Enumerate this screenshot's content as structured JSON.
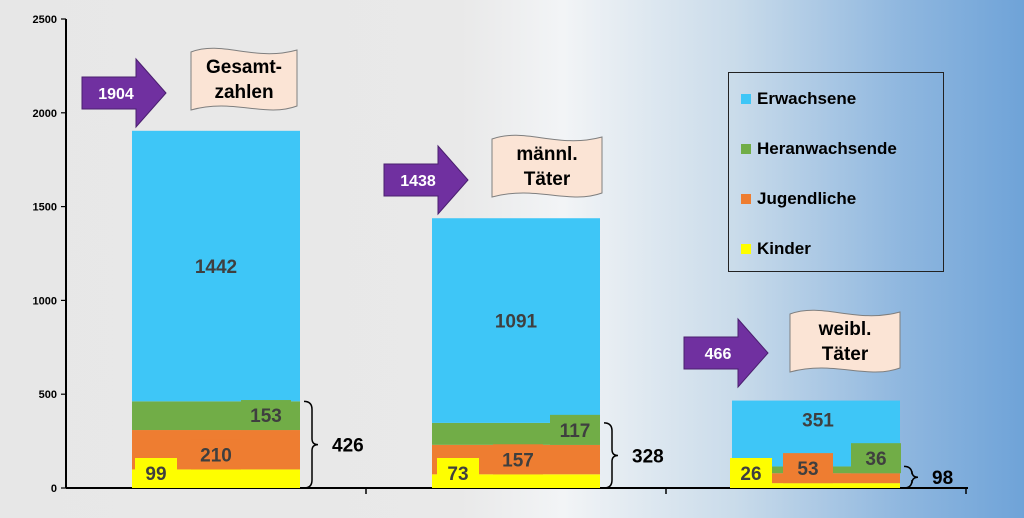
{
  "chart_data": {
    "type": "bar",
    "stacked": true,
    "ylim": [
      0,
      2500
    ],
    "yticks": [
      "0",
      "500",
      "1000",
      "1500",
      "2000",
      "2500"
    ],
    "grid": false,
    "legend_position": "right",
    "groups": [
      {
        "banner": [
          "Gesamt-",
          "zahlen"
        ],
        "total": "1904",
        "segments": [
          {
            "series": "Kinder",
            "value": 99,
            "label": "99"
          },
          {
            "series": "Jugendliche",
            "value": 210,
            "label": "210"
          },
          {
            "series": "Heranwachsende",
            "value": 153,
            "label": "153"
          },
          {
            "series": "Erwachsene",
            "value": 1442,
            "label": "1442"
          }
        ],
        "brace_label": "426"
      },
      {
        "banner": [
          "männl.",
          "Täter"
        ],
        "total": "1438",
        "segments": [
          {
            "series": "Kinder",
            "value": 73,
            "label": "73"
          },
          {
            "series": "Jugendliche",
            "value": 157,
            "label": "157"
          },
          {
            "series": "Heranwachsende",
            "value": 117,
            "label": "117"
          },
          {
            "series": "Erwachsene",
            "value": 1091,
            "label": "1091"
          }
        ],
        "brace_label": "328"
      },
      {
        "banner": [
          "weibl.",
          "Täter"
        ],
        "total": "466",
        "segments": [
          {
            "series": "Kinder",
            "value": 26,
            "label": "26"
          },
          {
            "series": "Jugendliche",
            "value": 53,
            "label": "53"
          },
          {
            "series": "Heranwachsende",
            "value": 36,
            "label": "36"
          },
          {
            "series": "Erwachsene",
            "value": 351,
            "label": "351"
          }
        ],
        "brace_label": "98"
      }
    ],
    "series": [
      {
        "name": "Erwachsene",
        "color": "#3ec6f7"
      },
      {
        "name": "Heranwachsende",
        "color": "#71ad47"
      },
      {
        "name": "Jugendliche",
        "color": "#ee7d31"
      },
      {
        "name": "Kinder",
        "color": "#fefe00"
      }
    ],
    "colors": {
      "arrow": "#7030a0",
      "banner_fill": "#fbe4d5"
    }
  }
}
